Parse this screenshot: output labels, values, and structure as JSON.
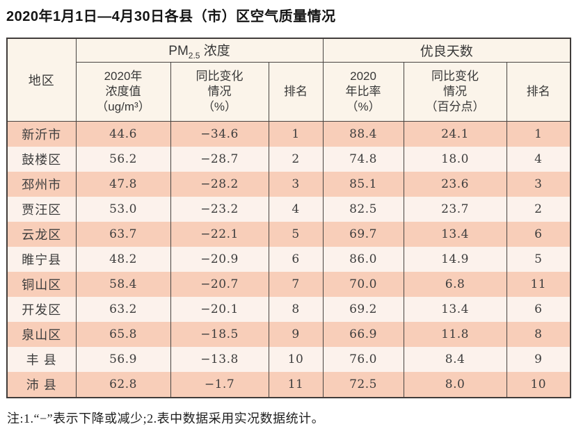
{
  "title": "2020年1月1日—4月30日各县（市）区空气质量情况",
  "colors": {
    "row_stripe_salmon": "#f8ceb9",
    "row_stripe_light": "#fcf2ec",
    "header_background": "#fbf4ea",
    "table_border": "#474340"
  },
  "table": {
    "header": {
      "region": "地区",
      "pm25_group": {
        "prefix": "PM",
        "sub": "2.5",
        "suffix": " 浓度"
      },
      "good_days_group": "优良天数",
      "sub_columns": {
        "pm25_value": "2020年\n浓度值\n（ug/m³）",
        "pm25_change": "同比变化\n情况\n（%）",
        "pm25_rank": "排名",
        "good_ratio": "2020\n年比率\n（%）",
        "good_change": "同比变化\n情况\n（百分点）",
        "good_rank": "排名"
      }
    },
    "rows": [
      {
        "region": "新沂市",
        "pm25_value": "44.6",
        "pm25_change": "−34.6",
        "pm25_rank": "1",
        "good_ratio": "88.4",
        "good_change": "24.1",
        "good_rank": "1"
      },
      {
        "region": "鼓楼区",
        "pm25_value": "56.2",
        "pm25_change": "−28.7",
        "pm25_rank": "2",
        "good_ratio": "74.8",
        "good_change": "18.0",
        "good_rank": "4"
      },
      {
        "region": "邳州市",
        "pm25_value": "47.8",
        "pm25_change": "−28.2",
        "pm25_rank": "3",
        "good_ratio": "85.1",
        "good_change": "23.6",
        "good_rank": "3"
      },
      {
        "region": "贾汪区",
        "pm25_value": "53.0",
        "pm25_change": "−23.2",
        "pm25_rank": "4",
        "good_ratio": "82.5",
        "good_change": "23.7",
        "good_rank": "2"
      },
      {
        "region": "云龙区",
        "pm25_value": "63.7",
        "pm25_change": "−22.1",
        "pm25_rank": "5",
        "good_ratio": "69.7",
        "good_change": "13.4",
        "good_rank": "6"
      },
      {
        "region": "睢宁县",
        "pm25_value": "48.2",
        "pm25_change": "−20.9",
        "pm25_rank": "6",
        "good_ratio": "86.0",
        "good_change": "14.9",
        "good_rank": "5"
      },
      {
        "region": "铜山区",
        "pm25_value": "58.4",
        "pm25_change": "−20.7",
        "pm25_rank": "7",
        "good_ratio": "70.0",
        "good_change": "6.8",
        "good_rank": "11"
      },
      {
        "region": "开发区",
        "pm25_value": "63.2",
        "pm25_change": "−20.1",
        "pm25_rank": "8",
        "good_ratio": "69.2",
        "good_change": "13.4",
        "good_rank": "6"
      },
      {
        "region": "泉山区",
        "pm25_value": "65.8",
        "pm25_change": "−18.5",
        "pm25_rank": "9",
        "good_ratio": "66.9",
        "good_change": "11.8",
        "good_rank": "8"
      },
      {
        "region": "丰 县",
        "pm25_value": "56.9",
        "pm25_change": "−13.8",
        "pm25_rank": "10",
        "good_ratio": "76.0",
        "good_change": "8.4",
        "good_rank": "9"
      },
      {
        "region": "沛 县",
        "pm25_value": "62.8",
        "pm25_change": "−1.7",
        "pm25_rank": "11",
        "good_ratio": "72.5",
        "good_change": "8.0",
        "good_rank": "10"
      }
    ]
  },
  "footnote": "注:1.“−”表示下降或减少;2.表中数据采用实况数据统计。"
}
